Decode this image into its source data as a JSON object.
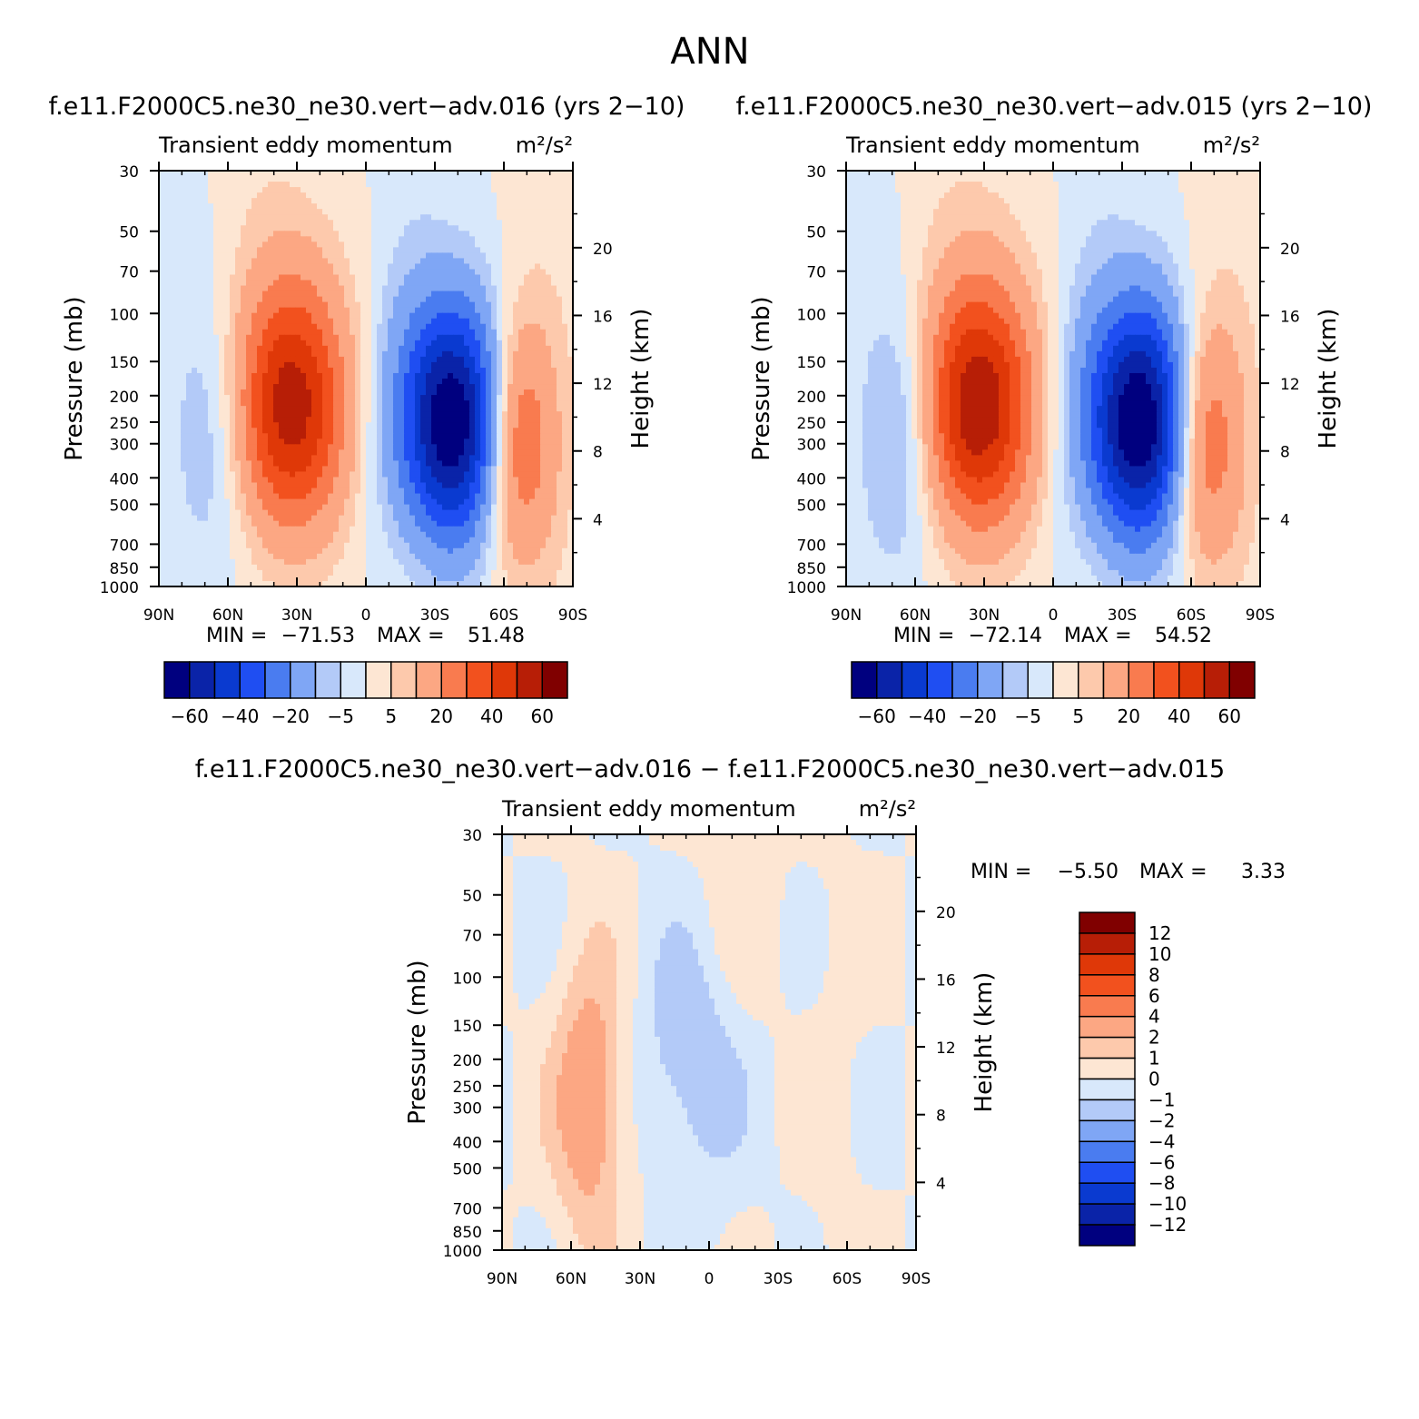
{
  "figure": {
    "title": "ANN",
    "diff_title": "f.e11.F2000C5.ne30_ne30.vert−adv.016 − f.e11.F2000C5.ne30_ne30.vert−adv.015"
  },
  "colors": {
    "main_levels": [
      "#00007f",
      "#0a23a8",
      "#0a3ad0",
      "#1f4ef2",
      "#4a7cf0",
      "#7fa6f5",
      "#b3caf8",
      "#d8e8fb",
      "#fde6d3",
      "#fdc9ac",
      "#fca783",
      "#f97b4f",
      "#f2511e",
      "#df3808",
      "#b71e06",
      "#800000"
    ],
    "diff_levels": [
      "#00007f",
      "#0a23a8",
      "#0a3ad0",
      "#1f4ef2",
      "#4a7cf0",
      "#7fa6f5",
      "#b3caf8",
      "#d8e8fb",
      "#fde6d3",
      "#fdc9ac",
      "#fca783",
      "#f97b4f",
      "#f2511e",
      "#df3808",
      "#b71e06",
      "#800000"
    ]
  },
  "chart_data": [
    {
      "id": "panel1",
      "type": "heatmap",
      "subtype": "filled-contour",
      "title": "f.e11.F2000C5.ne30_ne30.vert−adv.016 (yrs 2−10)",
      "variable": "Transient eddy momentum",
      "units": "m²/s²",
      "xlabel": "",
      "ylabel": "Pressure (mb)",
      "y2label": "Height (km)",
      "x_ticks": [
        "90N",
        "60N",
        "30N",
        "0",
        "30S",
        "60S",
        "90S"
      ],
      "x_values": [
        90,
        60,
        30,
        0,
        -30,
        -60,
        -90
      ],
      "y_ticks": [
        30,
        50,
        70,
        100,
        150,
        200,
        250,
        300,
        400,
        500,
        700,
        850,
        1000
      ],
      "y_scale": "log",
      "y2_ticks": [
        4,
        8,
        12,
        16,
        20
      ],
      "min_label": "MIN =",
      "min_value": "−71.53",
      "max_label": "MAX =",
      "max_value": "51.48",
      "colorbar_labels": [
        "−60",
        "−40",
        "−20",
        "−5",
        "5",
        "20",
        "40",
        "60"
      ],
      "contour_levels": [
        -70,
        -60,
        -50,
        -40,
        -30,
        -20,
        -10,
        -5,
        0,
        5,
        10,
        20,
        30,
        40,
        50,
        60,
        70
      ],
      "features": [
        {
          "lat": 33,
          "p": 220,
          "peak": 51.48,
          "sign": "positive"
        },
        {
          "lat": -38,
          "p": 250,
          "peak": -71.53,
          "sign": "negative"
        },
        {
          "lat": -65,
          "p": 290,
          "peak": 35,
          "sign": "positive"
        },
        {
          "lat": 65,
          "p": 280,
          "peak": -8,
          "sign": "negative"
        }
      ]
    },
    {
      "id": "panel2",
      "type": "heatmap",
      "subtype": "filled-contour",
      "title": "f.e11.F2000C5.ne30_ne30.vert−adv.015 (yrs 2−10)",
      "variable": "Transient eddy momentum",
      "units": "m²/s²",
      "xlabel": "",
      "ylabel": "Pressure (mb)",
      "y2label": "Height (km)",
      "x_ticks": [
        "90N",
        "60N",
        "30N",
        "0",
        "30S",
        "60S",
        "90S"
      ],
      "x_values": [
        90,
        60,
        30,
        0,
        -30,
        -60,
        -90
      ],
      "y_ticks": [
        30,
        50,
        70,
        100,
        150,
        200,
        250,
        300,
        400,
        500,
        700,
        850,
        1000
      ],
      "y_scale": "log",
      "y2_ticks": [
        4,
        8,
        12,
        16,
        20
      ],
      "min_label": "MIN =",
      "min_value": "−72.14",
      "max_label": "MAX =",
      "max_value": "54.52",
      "colorbar_labels": [
        "−60",
        "−40",
        "−20",
        "−5",
        "5",
        "20",
        "40",
        "60"
      ],
      "contour_levels": [
        -70,
        -60,
        -50,
        -40,
        -30,
        -20,
        -10,
        -5,
        0,
        5,
        10,
        20,
        30,
        40,
        50,
        60,
        70
      ],
      "features": [
        {
          "lat": 33,
          "p": 220,
          "peak": 54.52,
          "sign": "positive"
        },
        {
          "lat": -38,
          "p": 250,
          "peak": -72.14,
          "sign": "negative"
        },
        {
          "lat": -65,
          "p": 290,
          "peak": 33,
          "sign": "positive"
        },
        {
          "lat": 65,
          "p": 280,
          "peak": -12,
          "sign": "negative"
        }
      ]
    },
    {
      "id": "panel3",
      "type": "heatmap",
      "subtype": "filled-contour",
      "title": "",
      "variable": "Transient eddy momentum",
      "units": "m²/s²",
      "xlabel": "",
      "ylabel": "Pressure (mb)",
      "y2label": "Height (km)",
      "x_ticks": [
        "90N",
        "60N",
        "30N",
        "0",
        "30S",
        "60S",
        "90S"
      ],
      "x_values": [
        90,
        60,
        30,
        0,
        -30,
        -60,
        -90
      ],
      "y_ticks": [
        30,
        50,
        70,
        100,
        150,
        200,
        250,
        300,
        400,
        500,
        700,
        850,
        1000
      ],
      "y_scale": "log",
      "y2_ticks": [
        4,
        8,
        12,
        16,
        20
      ],
      "min_label": "MIN =",
      "min_value": "−5.50",
      "max_label": "MAX =",
      "max_value": "3.33",
      "colorbar_labels": [
        "12",
        "10",
        "8",
        "6",
        "4",
        "2",
        "1",
        "0",
        "−1",
        "−2",
        "−4",
        "−6",
        "−8",
        "−10",
        "−12"
      ],
      "contour_levels": [
        -14,
        -12,
        -10,
        -8,
        -6,
        -4,
        -2,
        -1,
        0,
        1,
        2,
        4,
        6,
        8,
        10,
        12,
        14
      ],
      "features": [
        {
          "lat": 52,
          "p": 280,
          "peak": 3.33,
          "sign": "positive"
        },
        {
          "lat": 5,
          "p": 170,
          "peak": -2.5,
          "sign": "negative"
        },
        {
          "lat": -5,
          "p": 90,
          "peak": 1.2,
          "sign": "positive"
        }
      ]
    }
  ]
}
